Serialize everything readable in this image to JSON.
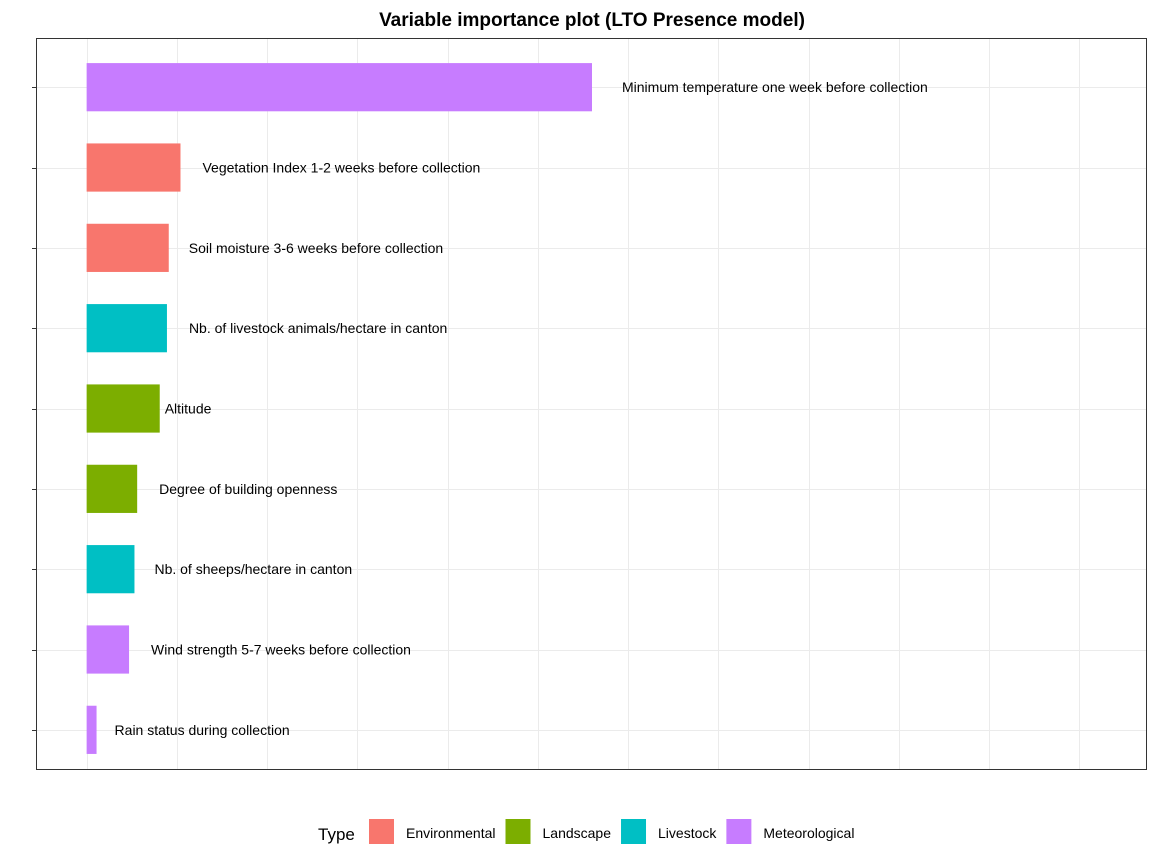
{
  "chart_data": {
    "type": "bar",
    "orientation": "horizontal",
    "title": "Variable importance plot (LTO Presence model)",
    "xlabel": "",
    "ylabel": "",
    "xlim": [
      -0.55,
      11.75
    ],
    "grid": true,
    "categories": [
      "Minimum temperature one week before collection",
      "Vegetation Index 1-2 weeks before collection",
      "Soil moisture 3-6 weeks before collection",
      "Nb. of livestock animals/hectare in canton",
      "Altitude",
      "Degree of building openness",
      "Nb. of sheeps/hectare in canton",
      "Wind strength 5-7 weeks before collection",
      "Rain status during collection"
    ],
    "values": [
      5.6,
      1.04,
      0.91,
      0.89,
      0.81,
      0.56,
      0.53,
      0.47,
      0.11
    ],
    "types": [
      "Meteorological",
      "Environmental",
      "Environmental",
      "Livestock",
      "Landscape",
      "Landscape",
      "Livestock",
      "Meteorological",
      "Meteorological"
    ],
    "legend": {
      "title": "Type",
      "placement": "bottom",
      "entries": [
        {
          "name": "Environmental",
          "color": "#F8766D"
        },
        {
          "name": "Landscape",
          "color": "#7CAE00"
        },
        {
          "name": "Livestock",
          "color": "#00BFC4"
        },
        {
          "name": "Meteorological",
          "color": "#C77CFF"
        }
      ]
    }
  }
}
